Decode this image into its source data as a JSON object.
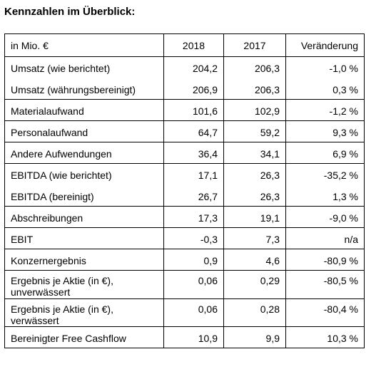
{
  "header": {
    "title": "Kennzahlen im Überblick:"
  },
  "table": {
    "columns": [
      "in Mio. €",
      "2018",
      "2017",
      "Veränderung"
    ],
    "groups": [
      [
        [
          "Umsatz (wie berichtet)",
          "204,2",
          "206,3",
          "-1,0 %"
        ],
        [
          "Umsatz (währungsbereinigt)",
          "206,9",
          "206,3",
          "0,3 %"
        ]
      ],
      [
        [
          "Materialaufwand",
          "101,6",
          "102,9",
          "-1,2 %"
        ]
      ],
      [
        [
          "Personalaufwand",
          "64,7",
          "59,2",
          "9,3 %"
        ]
      ],
      [
        [
          "Andere Aufwendungen",
          "36,4",
          "34,1",
          "6,9 %"
        ]
      ],
      [
        [
          "EBITDA (wie berichtet)",
          "17,1",
          "26,3",
          "-35,2 %"
        ],
        [
          "EBITDA (bereinigt)",
          "26,7",
          "26,3",
          "1,3 %"
        ]
      ],
      [
        [
          "Abschreibungen",
          "17,3",
          "19,1",
          "-9,0 %"
        ]
      ],
      [
        [
          "EBIT",
          "-0,3",
          "7,3",
          "n/a"
        ]
      ],
      [
        [
          "Konzernergebnis",
          "0,9",
          "4,6",
          "-80,9 %"
        ]
      ],
      [
        [
          "Ergebnis je Aktie (in €), unverwässert",
          "0,06",
          "0,29",
          "-80,5 %"
        ]
      ],
      [
        [
          "Ergebnis je Aktie (in €), verwässert",
          "0,06",
          "0,28",
          "-80,4 %"
        ]
      ],
      [
        [
          "Bereinigter Free Cashflow",
          "10,9",
          "9,9",
          "10,3 %"
        ]
      ]
    ]
  }
}
